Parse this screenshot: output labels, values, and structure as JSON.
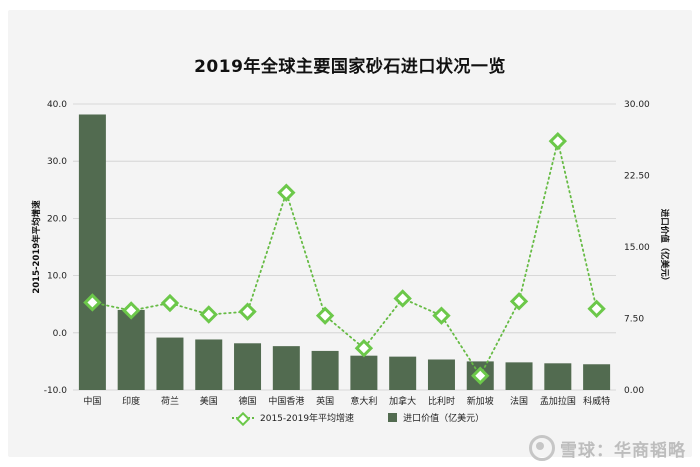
{
  "watermark": {
    "text": "雪球：华商韬略"
  },
  "legend": {
    "line_label": "2015-2019年平均增速",
    "bar_label": "进口价值（亿美元）"
  },
  "chart_data": {
    "type": "bar",
    "title": "2019年全球主要国家砂石进口状况一览",
    "categories": [
      "中国",
      "印度",
      "荷兰",
      "美国",
      "德国",
      "中国香港",
      "英国",
      "意大利",
      "加拿大",
      "比利时",
      "新加坡",
      "法国",
      "孟加拉国",
      "科威特"
    ],
    "y_left": {
      "label": "2015-2019年平均增速",
      "ylim": [
        -10,
        40
      ],
      "ticks": [
        "40.0",
        "30.0",
        "20.0",
        "10.0",
        "0.0",
        "-10.0"
      ]
    },
    "y_right": {
      "label": "进口价值（亿美元）",
      "ylim": [
        0,
        30
      ],
      "ticks": [
        "30.00",
        "22.50",
        "15.00",
        "7.50",
        "0.00"
      ]
    },
    "series": [
      {
        "name": "进口价值（亿美元）",
        "type": "bar",
        "axis": "right",
        "color": "#526b50",
        "values": [
          28.9,
          8.4,
          5.5,
          5.3,
          4.9,
          4.6,
          4.1,
          3.6,
          3.5,
          3.2,
          3.0,
          2.9,
          2.8,
          2.7
        ]
      },
      {
        "name": "2015-2019年平均增速",
        "type": "line",
        "axis": "left",
        "color": "#6cc84a",
        "values": [
          5.3,
          3.9,
          5.2,
          3.2,
          3.7,
          24.5,
          3.0,
          -2.7,
          6.0,
          3.0,
          -7.5,
          5.5,
          33.5,
          4.2
        ]
      }
    ],
    "grid": true,
    "legend_position": "bottom"
  }
}
